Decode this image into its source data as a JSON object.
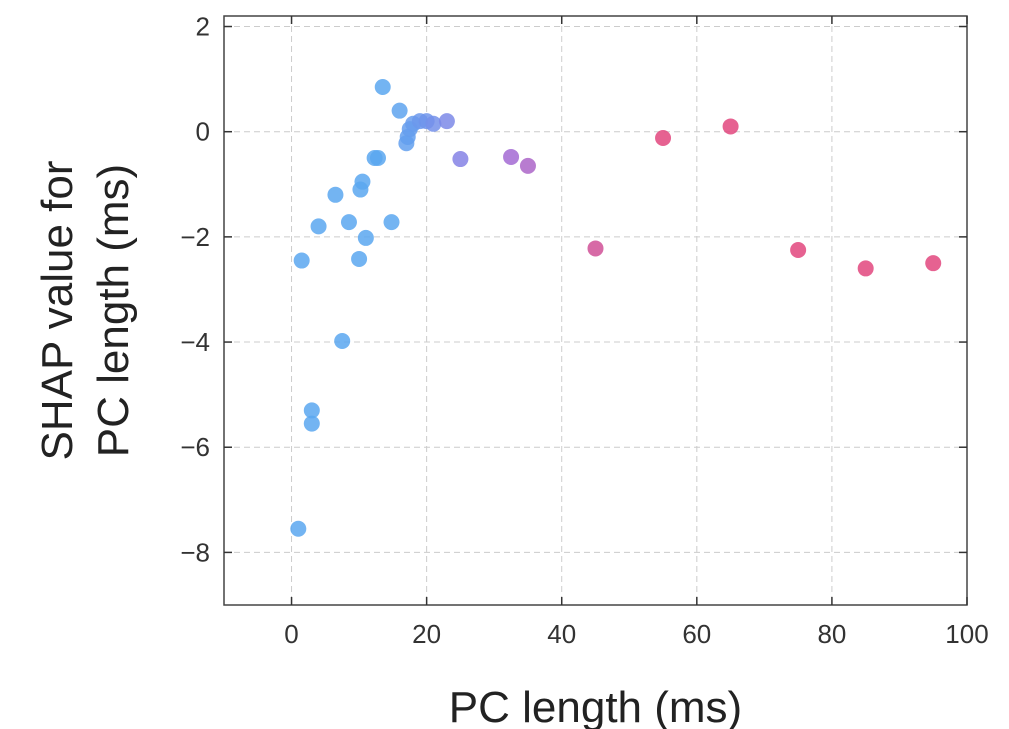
{
  "chart_data": {
    "type": "scatter",
    "title": "",
    "xlabel": "PC length (ms)",
    "ylabel": "SHAP value for\nPC length (ms)",
    "xlim": [
      -10,
      100
    ],
    "ylim": [
      -9,
      2.2
    ],
    "x_ticks": [
      0,
      20,
      40,
      60,
      80,
      100
    ],
    "y_ticks": [
      2,
      0,
      -2,
      -4,
      -6,
      -8
    ],
    "x_tick_labels": [
      "0",
      "20",
      "40",
      "60",
      "80",
      "100"
    ],
    "y_tick_labels": [
      "2",
      "0",
      "−2",
      "−4",
      "−6",
      "−8"
    ],
    "grid": true,
    "color_low": "#5aa7f0",
    "color_mid": "#9a6fe0",
    "color_high": "#e2467e",
    "points": [
      {
        "x": 1,
        "y": -7.55
      },
      {
        "x": 1.5,
        "y": -2.45
      },
      {
        "x": 3,
        "y": -5.3
      },
      {
        "x": 3,
        "y": -5.55
      },
      {
        "x": 4,
        "y": -1.8
      },
      {
        "x": 6.5,
        "y": -1.2
      },
      {
        "x": 7.5,
        "y": -3.98
      },
      {
        "x": 8.5,
        "y": -1.72
      },
      {
        "x": 10,
        "y": -2.42
      },
      {
        "x": 10.2,
        "y": -1.1
      },
      {
        "x": 10.5,
        "y": -0.95
      },
      {
        "x": 11,
        "y": -2.02
      },
      {
        "x": 12.3,
        "y": -0.5
      },
      {
        "x": 12.8,
        "y": -0.5
      },
      {
        "x": 13.5,
        "y": 0.85
      },
      {
        "x": 14.8,
        "y": -1.72
      },
      {
        "x": 16,
        "y": 0.4
      },
      {
        "x": 17,
        "y": -0.22
      },
      {
        "x": 17.2,
        "y": -0.1
      },
      {
        "x": 17.5,
        "y": 0.05
      },
      {
        "x": 18,
        "y": 0.15
      },
      {
        "x": 19,
        "y": 0.2
      },
      {
        "x": 20,
        "y": 0.2
      },
      {
        "x": 21,
        "y": 0.15
      },
      {
        "x": 23,
        "y": 0.2
      },
      {
        "x": 25,
        "y": -0.52
      },
      {
        "x": 32.5,
        "y": -0.48
      },
      {
        "x": 35,
        "y": -0.65
      },
      {
        "x": 45,
        "y": -2.22
      },
      {
        "x": 55,
        "y": -0.12
      },
      {
        "x": 65,
        "y": 0.1
      },
      {
        "x": 75,
        "y": -2.25
      },
      {
        "x": 85,
        "y": -2.6
      },
      {
        "x": 95,
        "y": -2.5
      }
    ]
  }
}
